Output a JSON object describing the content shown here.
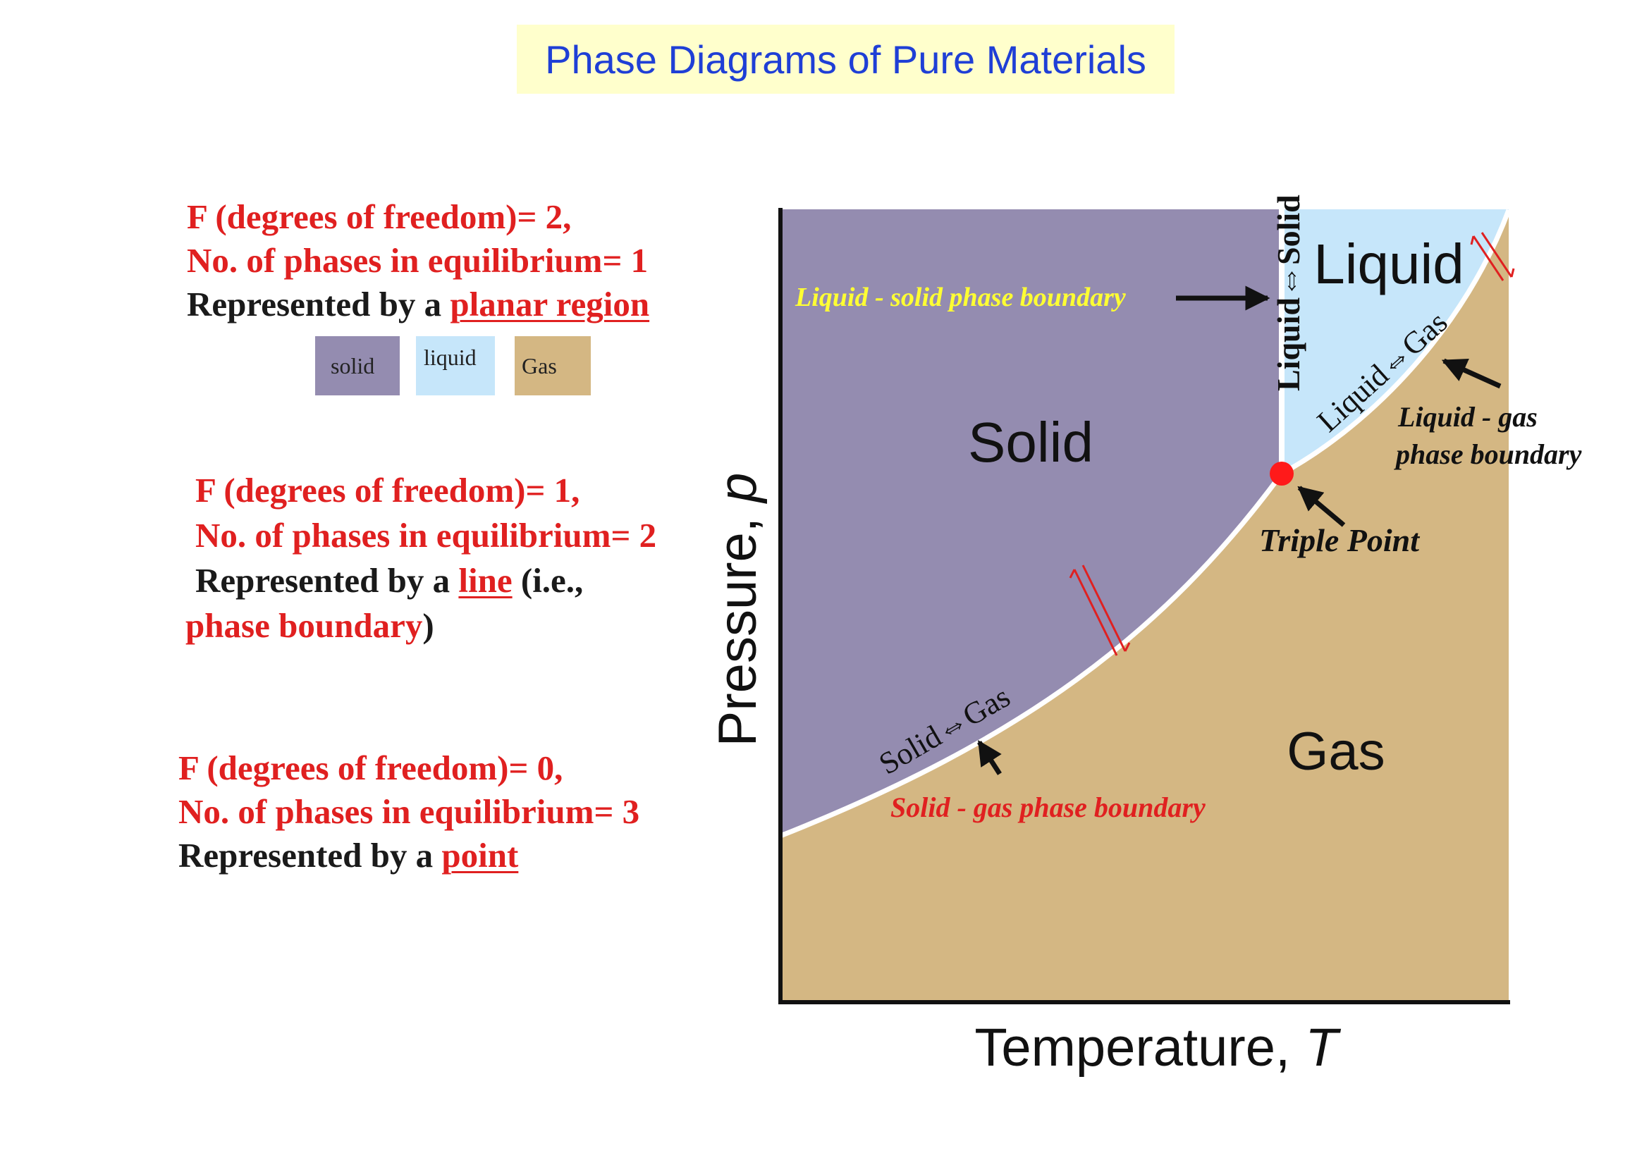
{
  "title": "Phase Diagrams of Pure Materials",
  "blocks": {
    "planar": {
      "line1": "F (degrees of freedom)= 2,",
      "line2": "No. of phases in equilibrium= 1",
      "line3_prefix": "Represented by a ",
      "line3_link": "planar region"
    },
    "line": {
      "line1": "F (degrees of freedom)= 1,",
      "line2": "No. of phases in equilibrium= 2",
      "line3_prefix": "Represented by a ",
      "line3_link": "line",
      "line3_suffix": " (i.e.,",
      "line4_link": "phase boundary",
      "line4_suffix": ")"
    },
    "point": {
      "line1": "F (degrees of freedom)= 0,",
      "line2": "No. of phases in equilibrium= 3",
      "line3_prefix": "Represented by a ",
      "line3_link": "point"
    }
  },
  "legend": [
    {
      "label": "solid",
      "color": "#948cb0"
    },
    {
      "label": "liquid",
      "color": "#c6e6fa"
    },
    {
      "label": "Gas",
      "color": "#d4b783"
    }
  ],
  "diagram": {
    "axes": {
      "x_label": "Temperature, ",
      "x_symbol": "T",
      "y_label": "Pressure, ",
      "y_symbol": "p"
    },
    "regions": {
      "solid": "Solid",
      "liquid": "Liquid",
      "gas": "Gas"
    },
    "curve_labels": {
      "solid_liquid": "Liquid⇔Solid",
      "liquid_gas": "Liquid⇔Gas",
      "solid_gas": "Solid⇔Gas"
    },
    "annotations": {
      "liquid_solid_boundary": "Liquid - solid phase boundary",
      "liquid_gas_line1": "Liquid - gas",
      "liquid_gas_line2": "phase boundary",
      "triple_point": "Triple Point",
      "solid_gas_boundary": "Solid - gas phase boundary"
    },
    "colors": {
      "solid": "#948cb0",
      "liquid": "#c6e6fa",
      "gas": "#d4b783",
      "triple_point": "#ff1a1a",
      "annotation_yellow": "#ffff33",
      "annotation_red": "#e02020",
      "equilibrium_marks": "#e02020"
    }
  }
}
